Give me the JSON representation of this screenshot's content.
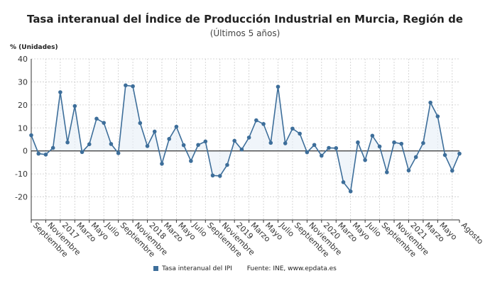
{
  "chart_data": {
    "type": "line",
    "title": "Tasa interanual del Índice de Producción Industrial en Murcia, Región de",
    "subtitle": "(Últimos 5 años)",
    "ylabel": "% (Unidades)",
    "ylim": [
      -30,
      40
    ],
    "yticks": [
      -20,
      -10,
      0,
      10,
      20,
      30,
      40
    ],
    "grid": true,
    "legend_position": "bottom",
    "source": "Fuente: INE, www.epdata.es",
    "color": "#3d6e9a",
    "xtick_labels": [
      {
        "i": 0,
        "label": "Septiembre"
      },
      {
        "i": 2,
        "label": "Noviembre"
      },
      {
        "i": 4,
        "label": "2017"
      },
      {
        "i": 6,
        "label": "Marzo"
      },
      {
        "i": 8,
        "label": "Mayo"
      },
      {
        "i": 10,
        "label": "Julio"
      },
      {
        "i": 12,
        "label": "Septiembre"
      },
      {
        "i": 14,
        "label": "Noviembre"
      },
      {
        "i": 16,
        "label": "2018"
      },
      {
        "i": 18,
        "label": "Marzo"
      },
      {
        "i": 20,
        "label": "Mayo"
      },
      {
        "i": 22,
        "label": "Julio"
      },
      {
        "i": 24,
        "label": "Septiembre"
      },
      {
        "i": 26,
        "label": "Noviembre"
      },
      {
        "i": 28,
        "label": "2019"
      },
      {
        "i": 30,
        "label": "Marzo"
      },
      {
        "i": 32,
        "label": "Mayo"
      },
      {
        "i": 34,
        "label": "Julio"
      },
      {
        "i": 36,
        "label": "Septiembre"
      },
      {
        "i": 38,
        "label": "Noviembre"
      },
      {
        "i": 40,
        "label": "2020"
      },
      {
        "i": 42,
        "label": "Marzo"
      },
      {
        "i": 44,
        "label": "Mayo"
      },
      {
        "i": 46,
        "label": "Julio"
      },
      {
        "i": 48,
        "label": "Septiembre"
      },
      {
        "i": 50,
        "label": "Noviembre"
      },
      {
        "i": 52,
        "label": "2021"
      },
      {
        "i": 54,
        "label": "Marzo"
      },
      {
        "i": 56,
        "label": "Mayo"
      },
      {
        "i": 59,
        "label": "Agosto"
      }
    ],
    "series": [
      {
        "name": "Tasa interanual del IPI",
        "values": [
          6.8,
          -1.2,
          -1.6,
          1.3,
          25.5,
          3.7,
          19.5,
          -0.5,
          2.9,
          14,
          12.2,
          3,
          -1,
          28.5,
          28.1,
          12.1,
          2.1,
          8.4,
          -5.6,
          5.2,
          10.5,
          2.5,
          -4.4,
          2.6,
          4.1,
          -10.7,
          -10.9,
          -6.1,
          4.4,
          0.6,
          5.8,
          13.3,
          11.7,
          3.5,
          27.9,
          3.3,
          9.7,
          7.5,
          -0.6,
          2.6,
          -2.1,
          1.3,
          1.2,
          -13.6,
          -17.6,
          3.7,
          -4,
          6.6,
          1.9,
          -9.3,
          3.7,
          3.1,
          -8.5,
          -2.7,
          3.4,
          21,
          15,
          -1.8,
          -8.6,
          -1.2
        ]
      }
    ]
  }
}
